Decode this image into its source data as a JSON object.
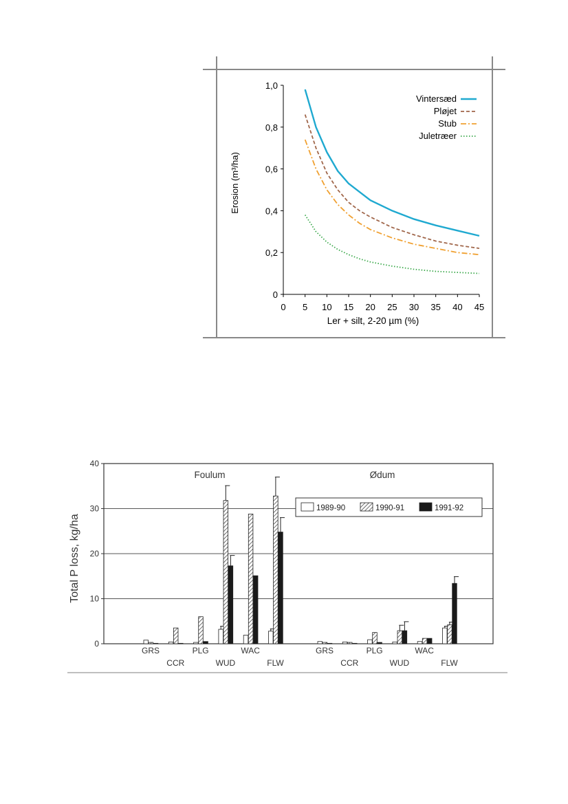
{
  "chart_data": [
    {
      "type": "line",
      "title": "",
      "xlabel": "Ler + silt, 2-20 µm (%)",
      "ylabel": "Erosion (m³/ha)",
      "xlim": [
        0,
        45
      ],
      "ylim": [
        0,
        1.0
      ],
      "xticks": [
        "0",
        "5",
        "10",
        "15",
        "20",
        "25",
        "30",
        "35",
        "40",
        "45"
      ],
      "yticks": [
        "0",
        "0,2",
        "0,4",
        "0,6",
        "0,8",
        "1,0"
      ],
      "legend_position": "top-right",
      "grid": false,
      "x": [
        5,
        7.5,
        10,
        12.5,
        15,
        17.5,
        20,
        25,
        30,
        35,
        40,
        45
      ],
      "series": [
        {
          "name": "Vintersæd",
          "color": "#1fa9d0",
          "style": "solid",
          "values": [
            0.98,
            0.8,
            0.68,
            0.59,
            0.53,
            0.49,
            0.45,
            0.4,
            0.36,
            0.33,
            0.305,
            0.28
          ]
        },
        {
          "name": "Pløjet",
          "color": "#a0664a",
          "style": "dashed",
          "values": [
            0.86,
            0.7,
            0.58,
            0.5,
            0.44,
            0.4,
            0.37,
            0.32,
            0.285,
            0.255,
            0.235,
            0.22
          ]
        },
        {
          "name": "Stub",
          "color": "#f0a030",
          "style": "dashdot",
          "values": [
            0.74,
            0.6,
            0.5,
            0.43,
            0.38,
            0.34,
            0.31,
            0.27,
            0.24,
            0.22,
            0.2,
            0.19
          ]
        },
        {
          "name": "Juletræer",
          "color": "#3aa84a",
          "style": "dotted",
          "values": [
            0.38,
            0.3,
            0.25,
            0.215,
            0.19,
            0.17,
            0.155,
            0.135,
            0.12,
            0.11,
            0.105,
            0.1
          ]
        }
      ]
    },
    {
      "type": "bar",
      "title": "",
      "ylabel": "Total P loss, kg/ha",
      "ylim": [
        0,
        40
      ],
      "yticks": [
        "0",
        "10",
        "20",
        "30",
        "40"
      ],
      "grid": true,
      "legend_position": "top-right",
      "series_names": [
        "1989-90",
        "1990-91",
        "1991-92"
      ],
      "series_fills": [
        "white",
        "hatched",
        "black"
      ],
      "groups": [
        {
          "name": "Foulum",
          "categories": [
            {
              "label": "GRS",
              "label_row": 1,
              "values": [
                0.8,
                0.3,
                0.1
              ]
            },
            {
              "label": "CCR",
              "label_row": 2,
              "values": [
                0.4,
                3.5,
                0.1
              ]
            },
            {
              "label": "PLG",
              "label_row": 1,
              "values": [
                0.3,
                6.0,
                0.5
              ]
            },
            {
              "label": "WUD",
              "label_row": 2,
              "values": [
                3.2,
                31.8,
                17.3
              ],
              "errors": [
                0.7,
                3.3,
                2.3
              ]
            },
            {
              "label": "WAC",
              "label_row": 1,
              "values": [
                1.9,
                28.8,
                15.1
              ]
            },
            {
              "label": "FLW",
              "label_row": 2,
              "values": [
                2.8,
                32.8,
                24.8
              ],
              "errors": [
                0.5,
                4.2,
                3.2
              ]
            }
          ]
        },
        {
          "name": "Ødum",
          "categories": [
            {
              "label": "GRS",
              "label_row": 1,
              "values": [
                0.5,
                0.3,
                0.1
              ]
            },
            {
              "label": "CCR",
              "label_row": 2,
              "values": [
                0.4,
                0.3,
                0.1
              ]
            },
            {
              "label": "PLG",
              "label_row": 1,
              "values": [
                0.9,
                2.5,
                0.3
              ]
            },
            {
              "label": "WUD",
              "label_row": 2,
              "values": [
                0.4,
                2.9,
                2.9
              ],
              "errors": [
                0,
                1.2,
                2.0
              ]
            },
            {
              "label": "WAC",
              "label_row": 1,
              "values": [
                0.5,
                1.2,
                1.2
              ]
            },
            {
              "label": "FLW",
              "label_row": 2,
              "values": [
                3.5,
                4.2,
                13.4
              ],
              "errors": [
                0.4,
                0.6,
                1.5
              ]
            }
          ]
        }
      ]
    }
  ]
}
